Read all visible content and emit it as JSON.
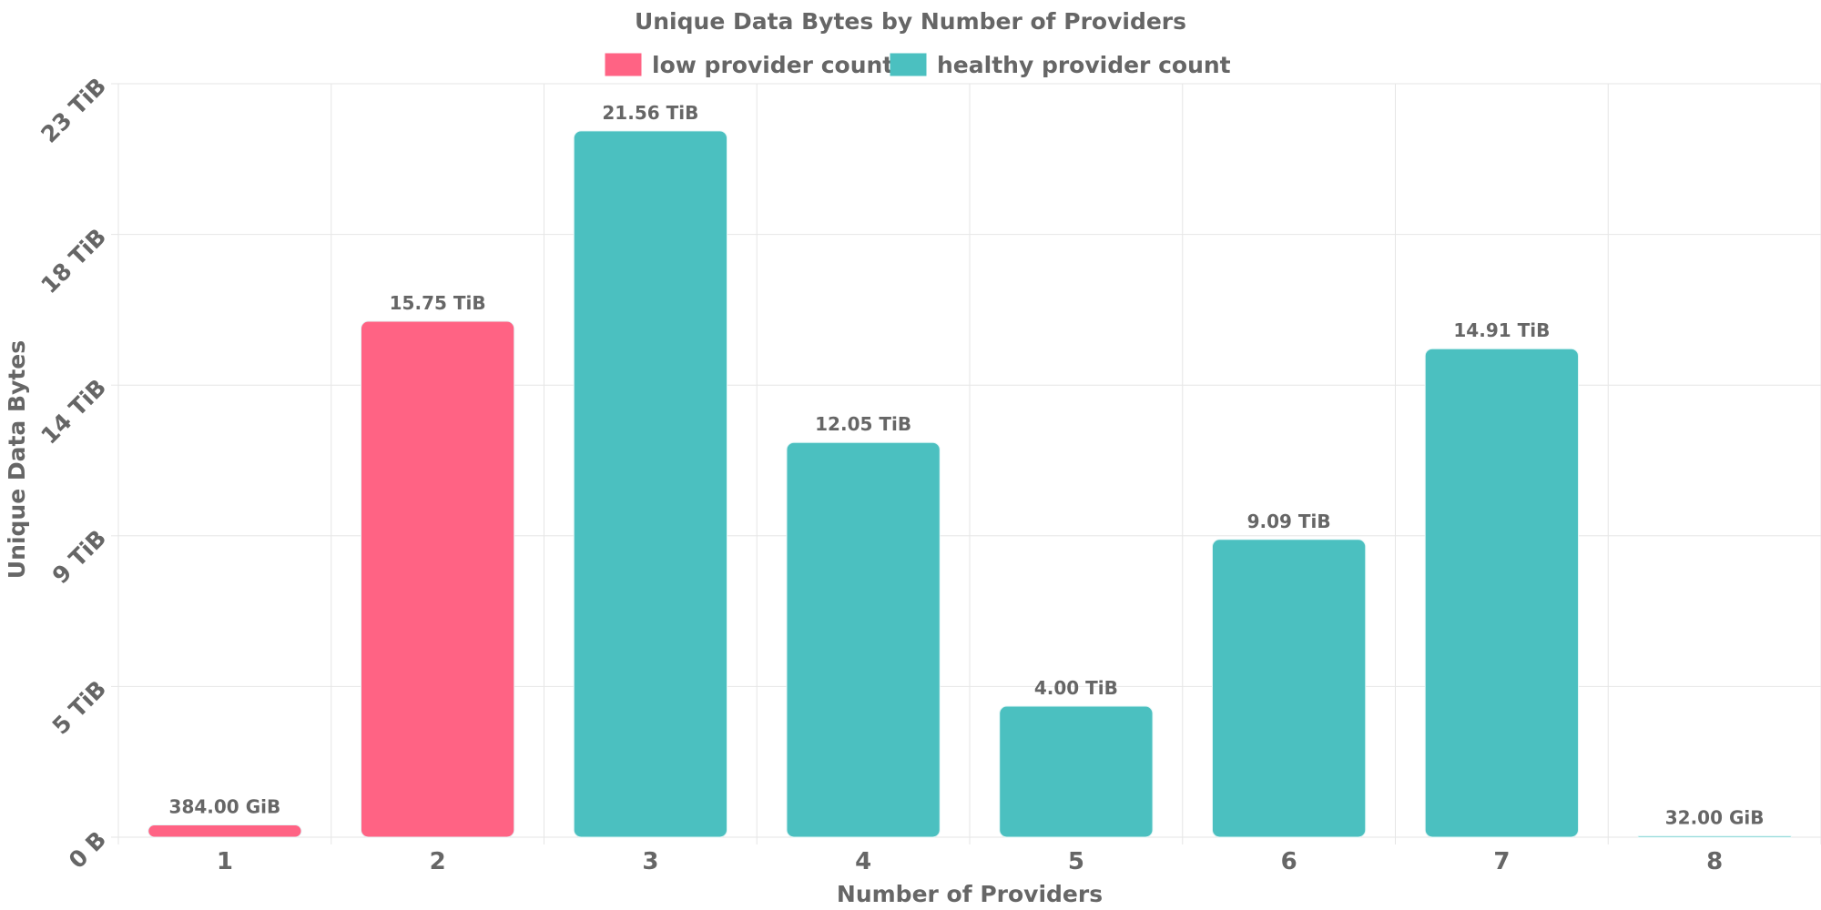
{
  "chart_data": {
    "type": "bar",
    "title": "Unique Data Bytes by Number of Providers",
    "xlabel": "Number of Providers",
    "ylabel": "Unique Data Bytes",
    "categories": [
      "1",
      "2",
      "3",
      "4",
      "5",
      "6",
      "7",
      "8"
    ],
    "values_tib": [
      0.375,
      15.75,
      21.56,
      12.05,
      4.0,
      9.09,
      14.91,
      0.03125
    ],
    "value_labels": [
      "384.00 GiB",
      "15.75 TiB",
      "21.56 TiB",
      "12.05 TiB",
      "4.00 TiB",
      "9.09 TiB",
      "14.91 TiB",
      "32.00 GiB"
    ],
    "bar_groups": [
      "low provider count",
      "low provider count",
      "healthy provider count",
      "healthy provider count",
      "healthy provider count",
      "healthy provider count",
      "healthy provider count",
      "healthy provider count"
    ],
    "y_ticks": [
      0,
      4.6,
      9.2,
      13.8,
      18.4,
      23
    ],
    "y_tick_labels": [
      "0 B",
      "5 TiB",
      "9 TiB",
      "14 TiB",
      "18 TiB",
      "23 TiB"
    ],
    "ylim": [
      0,
      23
    ],
    "y_unit": "TiB",
    "grid": true,
    "legend": {
      "position": "top-center",
      "entries": [
        {
          "name": "low provider count",
          "color": "#ff6384"
        },
        {
          "name": "healthy provider count",
          "color": "#4bc0c0"
        }
      ]
    },
    "colors": {
      "low provider count": "#ff6384",
      "healthy provider count": "#4bc0c0"
    }
  }
}
